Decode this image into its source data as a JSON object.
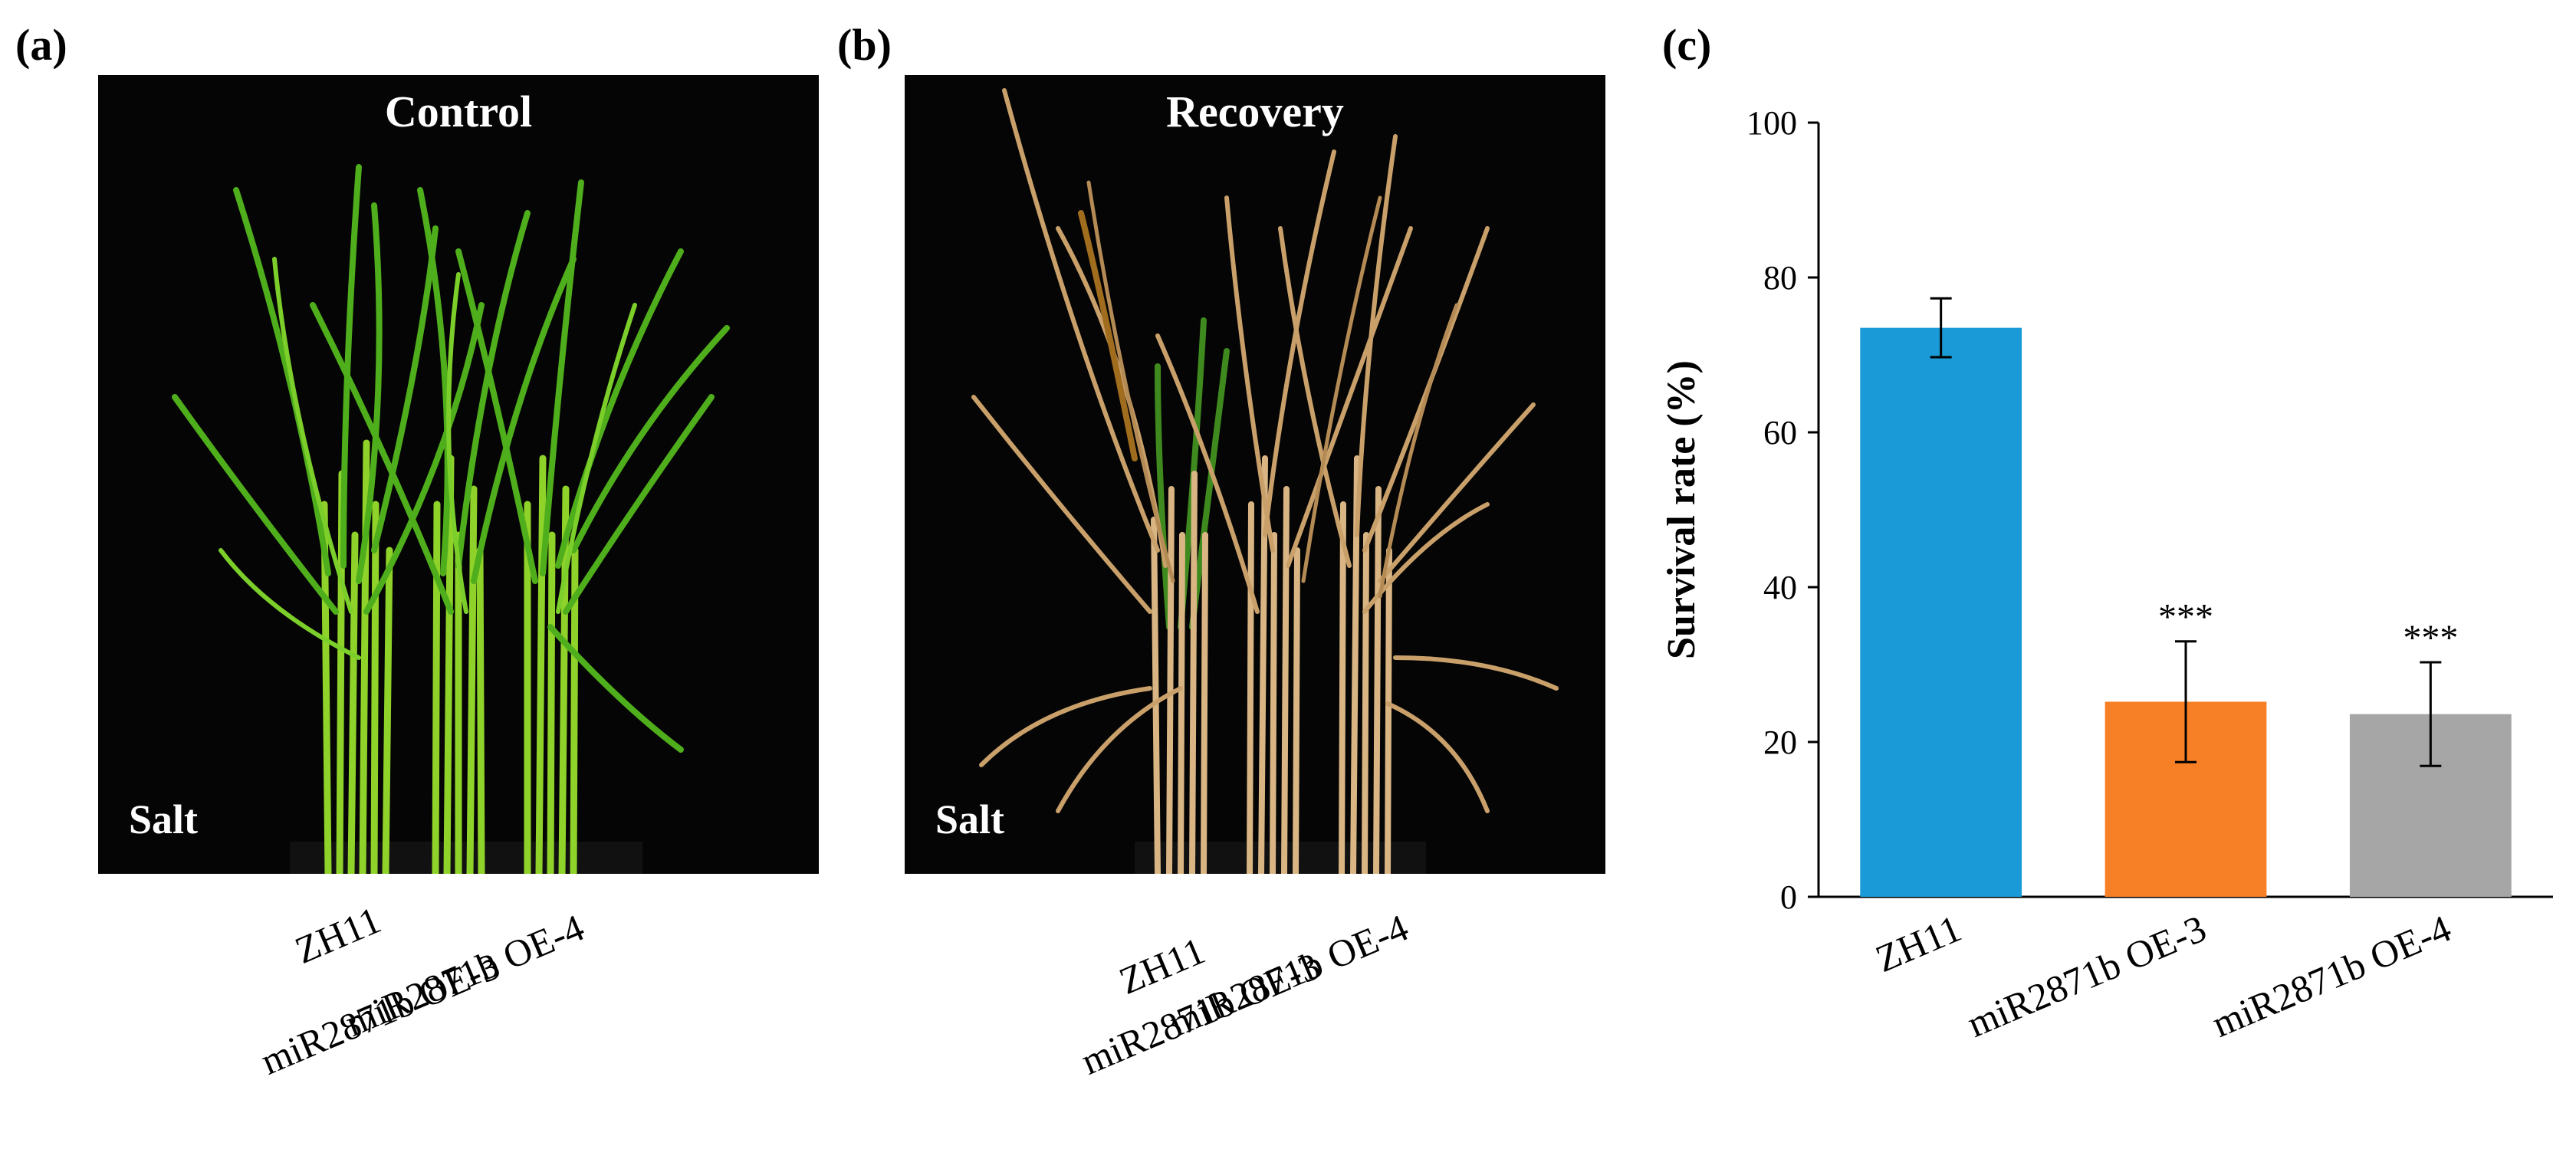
{
  "panels": {
    "a": {
      "letter": "(a)",
      "title": "Control",
      "corner_label": "Salt",
      "genotype_labels": [
        "ZH11",
        "miR2871b OE-3",
        "miR2871b OE-4"
      ]
    },
    "b": {
      "letter": "(b)",
      "title": "Recovery",
      "corner_label": "Salt",
      "genotype_labels": [
        "ZH11",
        "miR2871b OE-3",
        "miR2871b OE-4"
      ]
    },
    "c": {
      "letter": "(c)"
    }
  },
  "chart_data": {
    "type": "bar",
    "categories": [
      "ZH11",
      "miR2871b OE-3",
      "miR2871b OE-4"
    ],
    "values": [
      73.5,
      25.2,
      23.6
    ],
    "errors": [
      3.8,
      7.8,
      6.7
    ],
    "significance": [
      "",
      "***",
      "***"
    ],
    "colors": [
      "#1a9ad6",
      "#f78026",
      "#a6a6a6"
    ],
    "ylabel": "Survival rate  (%)",
    "ylim": [
      0,
      100
    ],
    "yticks": [
      0,
      20,
      40,
      60,
      80,
      100
    ],
    "grid": false
  }
}
